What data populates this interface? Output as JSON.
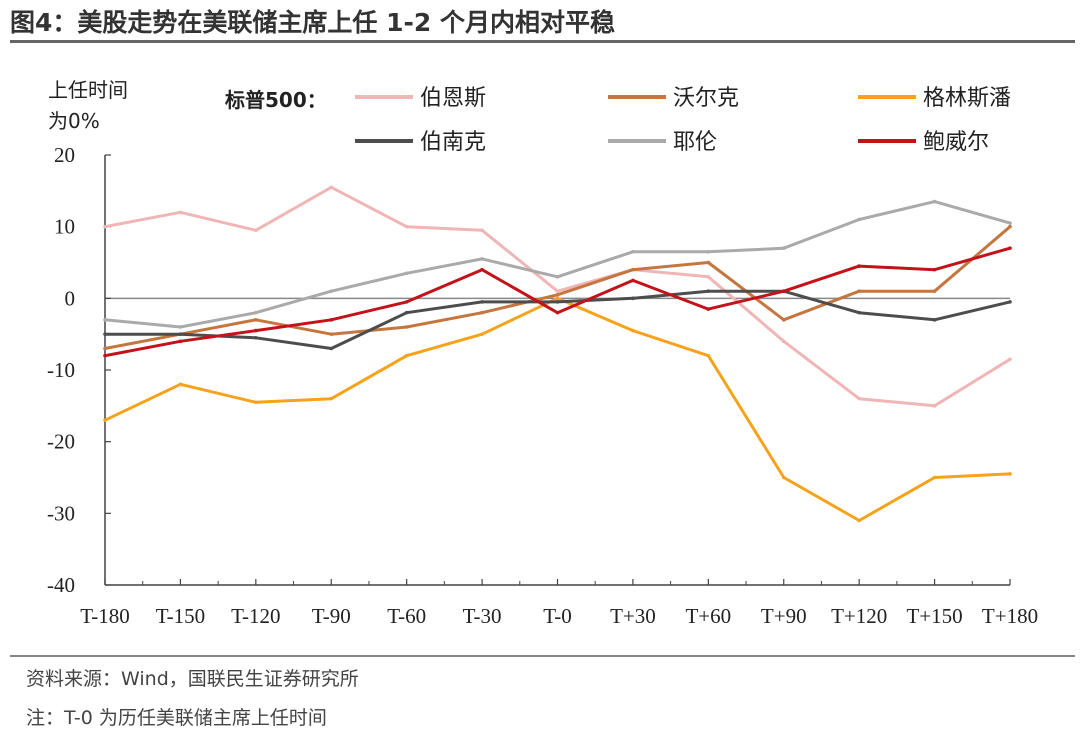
{
  "title": "图4：美股走势在美联储主席上任 1-2 个月内相对平稳",
  "source": "资料来源：Wind，国联民生证券研究所",
  "note": "注：T-0 为历任美联储主席上任时间",
  "chart_data": {
    "type": "line",
    "ylabel_lines": [
      "上任时间",
      "为0%"
    ],
    "legend_title": "标普500：",
    "legend_position": "top",
    "ylim": [
      -40,
      20
    ],
    "yticks": [
      -40,
      -30,
      -20,
      -10,
      0,
      10,
      20
    ],
    "xlim": [
      -180,
      180
    ],
    "xticks": [
      "T-180",
      "T-150",
      "T-120",
      "T-90",
      "T-60",
      "T-30",
      "T-0",
      "T+30",
      "T+60",
      "T+90",
      "T+120",
      "T+150",
      "T+180"
    ],
    "x": [
      -180,
      -150,
      -120,
      -90,
      -60,
      -30,
      0,
      30,
      60,
      90,
      120,
      150,
      180
    ],
    "grid": false,
    "zero_line": true,
    "series": [
      {
        "name": "伯恩斯",
        "color": "#f0b6b6",
        "values": [
          10,
          12,
          9.5,
          15.5,
          10,
          9.5,
          1,
          4,
          3,
          -6,
          -14,
          -15,
          -8.5
        ]
      },
      {
        "name": "沃尔克",
        "color": "#c5763e",
        "values": [
          -7,
          -5,
          -3,
          -5,
          -4,
          -2,
          0.5,
          4,
          5,
          -3,
          1,
          1,
          10
        ]
      },
      {
        "name": "格林斯潘",
        "color": "#f7a21b",
        "values": [
          -17,
          -12,
          -14.5,
          -14,
          -8,
          -5,
          0,
          -4.5,
          -8,
          -25,
          -31,
          -25,
          -24.5
        ]
      },
      {
        "name": "伯南克",
        "color": "#4d4d4d",
        "values": [
          -5,
          -5,
          -5.5,
          -7,
          -2,
          -0.5,
          -0.5,
          0,
          1,
          1,
          -2,
          -3,
          -0.5
        ]
      },
      {
        "name": "耶伦",
        "color": "#aaaaaa",
        "values": [
          -3,
          -4,
          -2,
          1,
          3.5,
          5.5,
          3,
          6.5,
          6.5,
          7,
          11,
          13.5,
          10.5
        ]
      },
      {
        "name": "鲍威尔",
        "color": "#c3121a",
        "values": [
          -8,
          -6,
          -4.5,
          -3,
          -0.5,
          4,
          -2,
          2.5,
          -1.5,
          1,
          4.5,
          4,
          7
        ]
      }
    ]
  }
}
